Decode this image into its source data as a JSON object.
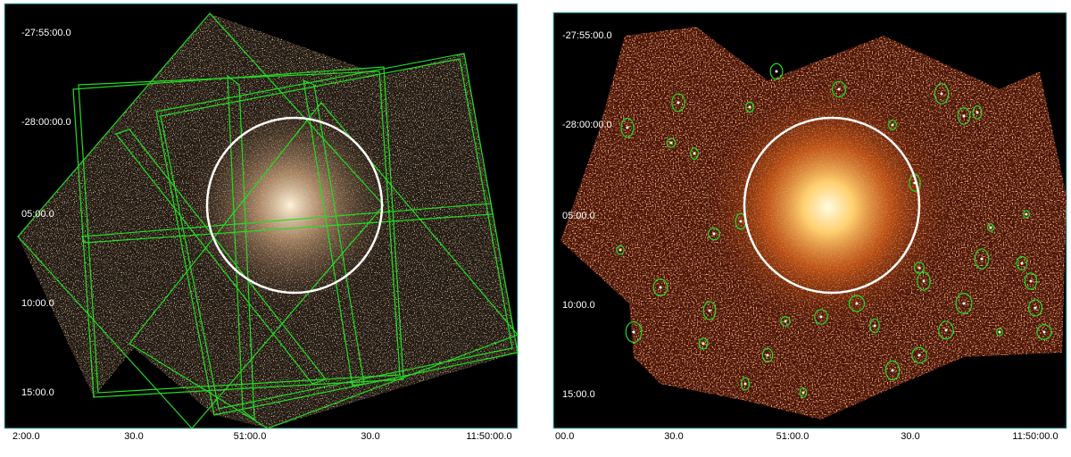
{
  "panels": [
    {
      "y_labels": [
        "-27:55:00.0",
        "-28:00:00.0",
        "05:00.0",
        "10:00.0",
        "15:00.0"
      ],
      "x_labels": [
        "2:00.0",
        "30.0",
        "51:00.0",
        "30.0",
        "11:50:00.0"
      ]
    },
    {
      "y_labels": [
        "-27:55:00.0",
        "-28:00:00.0",
        "05:00.0",
        "10:00.0",
        "15:00.0"
      ],
      "x_labels": [
        "00.0",
        "30.0",
        "51:00.0",
        "30.0",
        "11:50:00.0"
      ]
    }
  ]
}
